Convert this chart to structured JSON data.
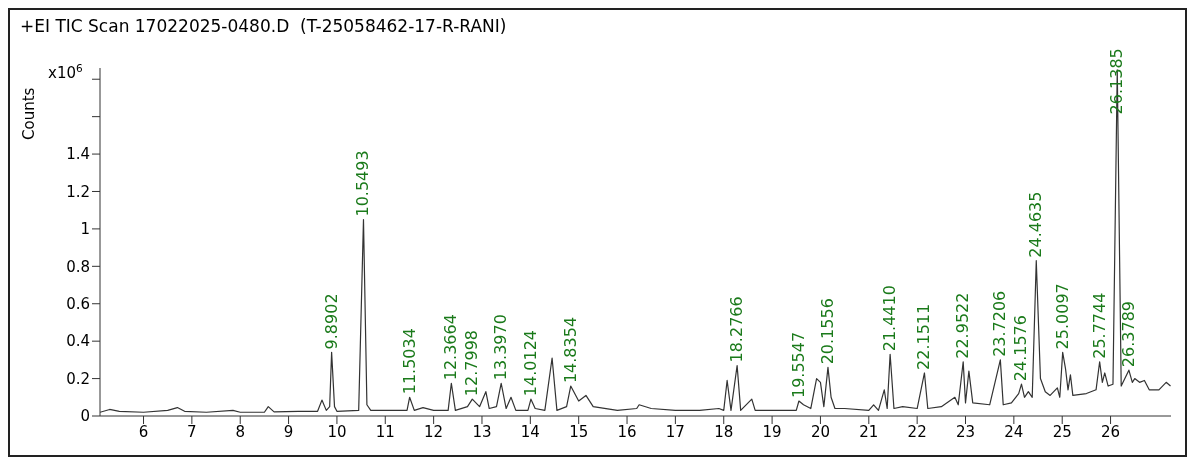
{
  "chart_data": {
    "type": "line",
    "title": "+EI TIC Scan 17022025-0480.D  (T-25058462-17-R-RANI)",
    "ylabel": "Counts",
    "x": [
      5.1,
      5.3,
      5.5,
      6,
      6.5,
      6.7,
      6.85,
      7.3,
      7.85,
      8,
      8.5,
      8.58,
      8.7,
      9.2,
      9.6,
      9.69,
      9.78,
      9.85,
      9.8902,
      9.95,
      10,
      10.45,
      10.5493,
      10.62,
      10.7,
      11,
      11.45,
      11.5034,
      11.6,
      11.78,
      12,
      12.3,
      12.3664,
      12.45,
      12.7,
      12.7998,
      12.95,
      13.08,
      13.15,
      13.3,
      13.397,
      13.5,
      13.6,
      13.7,
      13.95,
      14.0124,
      14.1,
      14.3,
      14.45,
      14.55,
      14.75,
      14.8354,
      15,
      15.15,
      15.3,
      15.8,
      16.2,
      16.25,
      16.5,
      17,
      17.5,
      17.9,
      18,
      18.07,
      18.15,
      18.2766,
      18.35,
      18.58,
      18.65,
      19,
      19.5,
      19.5547,
      19.65,
      19.8,
      19.92,
      20,
      20.07,
      20.1556,
      20.22,
      20.3,
      20.5,
      21,
      21.1,
      21.2,
      21.32,
      21.38,
      21.441,
      21.52,
      21.7,
      22,
      22.1511,
      22.22,
      22.5,
      22.78,
      22.85,
      22.9522,
      23,
      23.07,
      23.15,
      23.5,
      23.7206,
      23.78,
      23.95,
      24.1,
      24.1576,
      24.22,
      24.3,
      24.38,
      24.4635,
      24.55,
      24.65,
      24.75,
      24.9,
      24.95,
      25.0097,
      25.07,
      25.12,
      25.17,
      25.22,
      25.5,
      25.7,
      25.7744,
      25.83,
      25.88,
      25.95,
      26.05,
      26.1385,
      26.22,
      26.3789,
      26.45,
      26.5,
      26.6,
      26.7,
      26.8,
      27,
      27.15,
      27.24
    ],
    "series": [
      {
        "color": "#333333",
        "values": [
          0.02,
          0.035,
          0.025,
          0.02,
          0.03,
          0.045,
          0.025,
          0.02,
          0.03,
          0.02,
          0.02,
          0.05,
          0.022,
          0.025,
          0.025,
          0.085,
          0.03,
          0.05,
          0.34,
          0.05,
          0.025,
          0.03,
          1.05,
          0.06,
          0.03,
          0.03,
          0.03,
          0.1,
          0.03,
          0.045,
          0.03,
          0.03,
          0.175,
          0.03,
          0.05,
          0.09,
          0.05,
          0.13,
          0.04,
          0.05,
          0.175,
          0.04,
          0.1,
          0.03,
          0.03,
          0.09,
          0.04,
          0.03,
          0.31,
          0.03,
          0.05,
          0.16,
          0.08,
          0.11,
          0.05,
          0.03,
          0.04,
          0.06,
          0.04,
          0.03,
          0.03,
          0.04,
          0.03,
          0.19,
          0.03,
          0.27,
          0.03,
          0.09,
          0.03,
          0.03,
          0.03,
          0.08,
          0.06,
          0.04,
          0.2,
          0.18,
          0.05,
          0.26,
          0.1,
          0.04,
          0.04,
          0.03,
          0.06,
          0.03,
          0.14,
          0.04,
          0.33,
          0.04,
          0.05,
          0.04,
          0.23,
          0.04,
          0.05,
          0.1,
          0.06,
          0.29,
          0.07,
          0.24,
          0.07,
          0.06,
          0.3,
          0.06,
          0.07,
          0.12,
          0.17,
          0.1,
          0.13,
          0.1,
          0.83,
          0.2,
          0.13,
          0.11,
          0.15,
          0.1,
          0.34,
          0.25,
          0.14,
          0.22,
          0.11,
          0.12,
          0.14,
          0.29,
          0.18,
          0.23,
          0.16,
          0.17,
          1.85,
          0.16,
          0.245,
          0.18,
          0.2,
          0.18,
          0.19,
          0.14,
          0.14,
          0.18,
          0.16
        ]
      }
    ],
    "xlim": [
      5.1,
      27.25
    ],
    "xticks": [
      6,
      7,
      8,
      9,
      10,
      11,
      12,
      13,
      14,
      15,
      16,
      17,
      18,
      19,
      20,
      21,
      22,
      23,
      24,
      25,
      26
    ],
    "ylim": [
      0,
      1.86
    ],
    "yticks": [
      0,
      0.2,
      0.4,
      0.6,
      0.8,
      1,
      1.2,
      1.4,
      {
        "value": 1.6,
        "label": null
      },
      {
        "value": 1.8,
        "label": null
      }
    ],
    "grid": false,
    "marker": "none",
    "line_style": "solid",
    "annotations": [
      "x10$^{6}$",
      {
        "text": "9.8902",
        "x": 9.8902,
        "y": 0.34
      },
      {
        "text": "10.5493",
        "x": 10.5493,
        "y": 1.05
      },
      {
        "text": "11.5034",
        "x": 11.5034,
        "y": 0.1
      },
      {
        "text": "12.3664",
        "x": 12.3664,
        "y": 0.175
      },
      {
        "text": "12.7998",
        "x": 12.7998,
        "y": 0.09
      },
      {
        "text": "13.3970",
        "x": 13.397,
        "y": 0.175
      },
      {
        "text": "14.0124",
        "x": 14.0124,
        "y": 0.09
      },
      {
        "text": "14.8354",
        "x": 14.8354,
        "y": 0.16
      },
      {
        "text": "18.2766",
        "x": 18.2766,
        "y": 0.27
      },
      {
        "text": "19.5547",
        "x": 19.5547,
        "y": 0.08
      },
      {
        "text": "20.1556",
        "x": 20.1556,
        "y": 0.26
      },
      {
        "text": "21.4410",
        "x": 21.441,
        "y": 0.33
      },
      {
        "text": "22.1511",
        "x": 22.1511,
        "y": 0.23
      },
      {
        "text": "22.9522",
        "x": 22.9522,
        "y": 0.29
      },
      {
        "text": "23.7206",
        "x": 23.7206,
        "y": 0.3
      },
      {
        "text": "24.1576",
        "x": 24.1576,
        "y": 0.17
      },
      {
        "text": "24.4635",
        "x": 24.4635,
        "y": 0.83
      },
      {
        "text": "25.0097",
        "x": 25.0097,
        "y": 0.34
      },
      {
        "text": "25.7744",
        "x": 25.7744,
        "y": 0.29
      },
      {
        "text": "26.1385",
        "x": 26.1385,
        "y": 1.85
      },
      {
        "text": "26.3789",
        "x": 26.3789,
        "y": 0.245
      }
    ]
  }
}
